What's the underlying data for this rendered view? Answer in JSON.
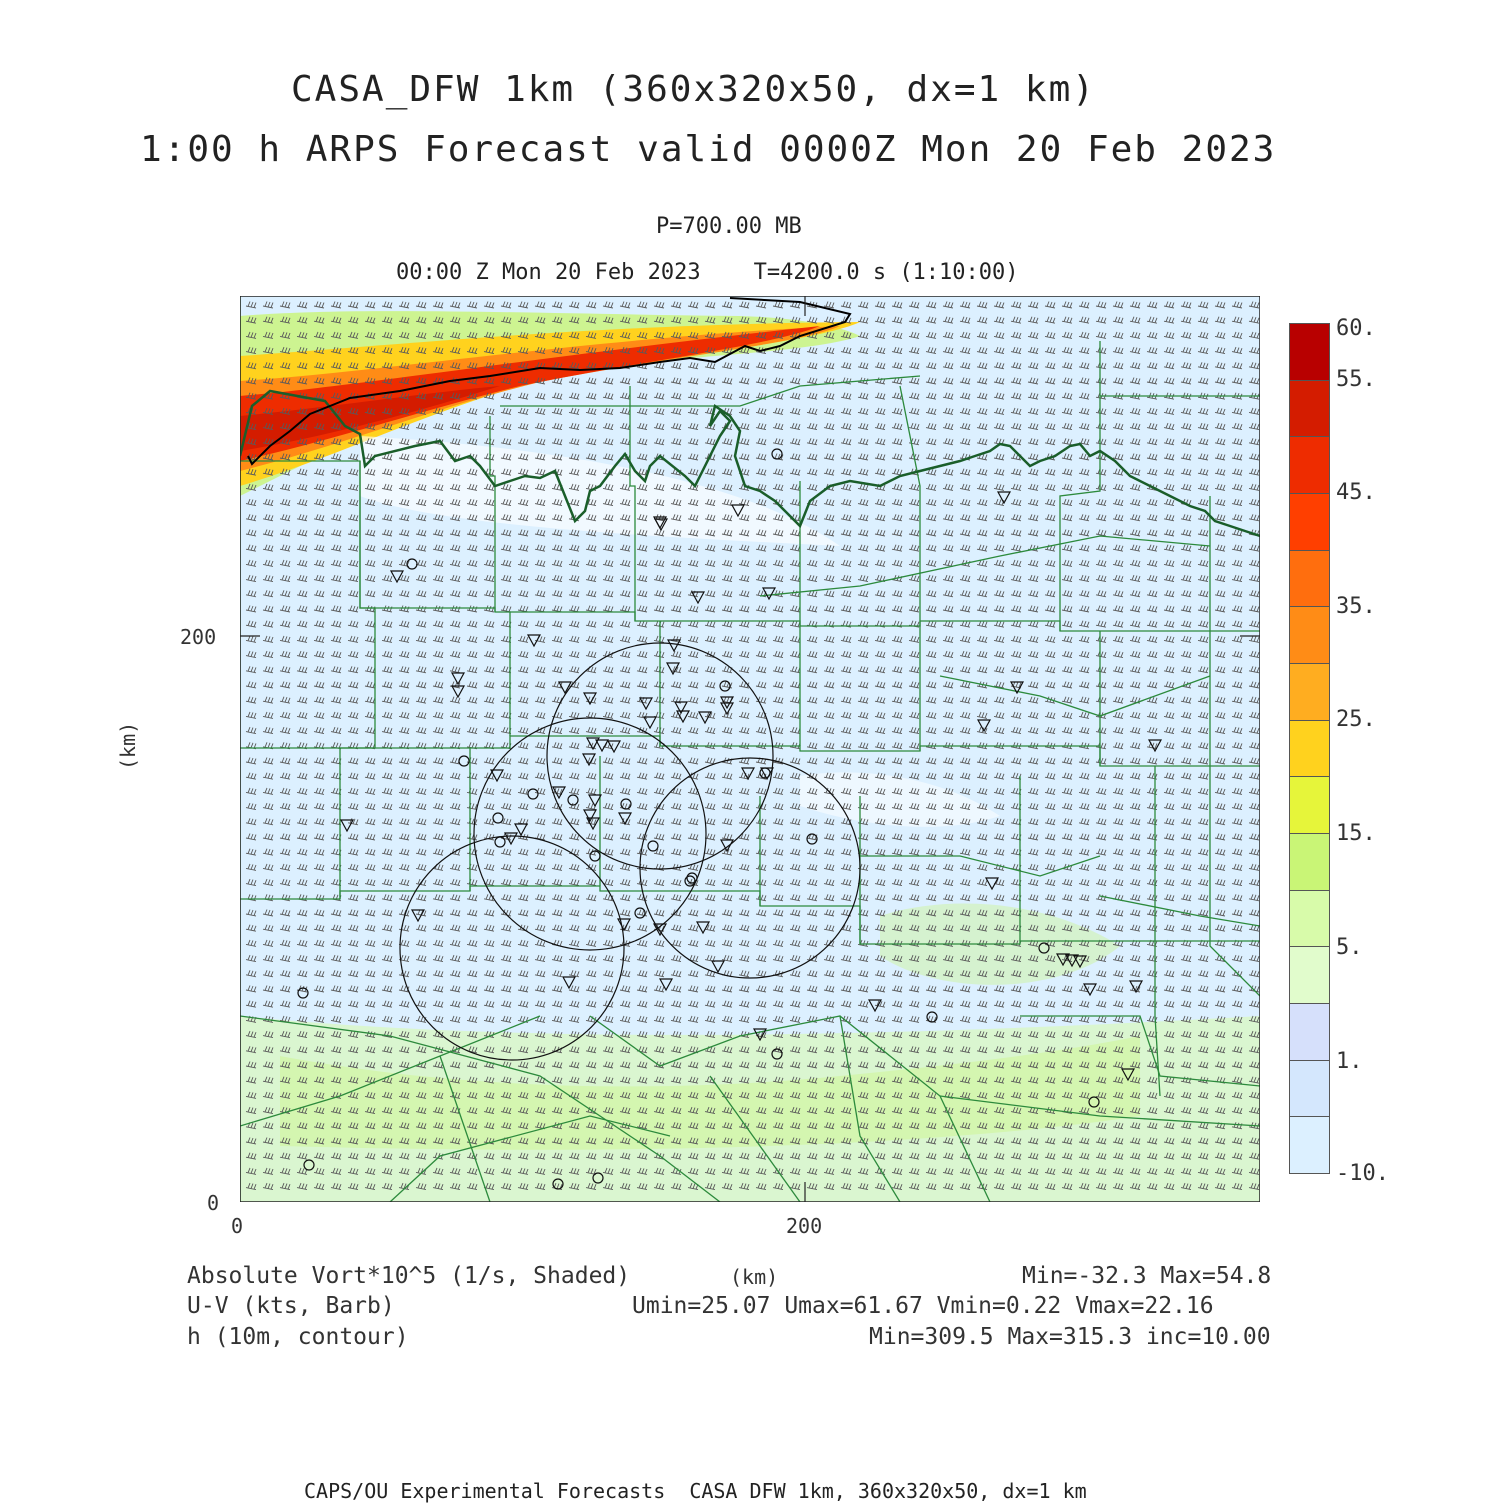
{
  "title": {
    "line1": "CASA_DFW 1km (360x320x50, dx=1 km)",
    "line2": "1:00 h ARPS Forecast valid 0000Z Mon 20 Feb 2023"
  },
  "subtitle": {
    "level": "P=700.00 MB",
    "time": "00:00 Z Mon 20 Feb 2023    T=4200.0 s (1:10:00)"
  },
  "axes": {
    "y_unit": "(km)",
    "x_unit": "(km)",
    "y_ticks": [
      "200",
      "0"
    ],
    "x_ticks": [
      "0",
      "200"
    ],
    "range_km": {
      "x": [
        0,
        360
      ],
      "y": [
        0,
        320
      ]
    }
  },
  "legend": {
    "field1": {
      "name": "Absolute Vort*10^5 (1/s, Shaded)",
      "stats": "Min=-32.3 Max=54.8"
    },
    "field2": {
      "name": "U-V (kts, Barb)",
      "stats": "Umin=25.07 Umax=61.67 Vmin=0.22 Vmax=22.16"
    },
    "field3": {
      "name": "h (10m, contour)",
      "stats": "Min=309.5 Max=315.3 inc=10.00"
    }
  },
  "colorbar": {
    "labels": [
      "60.",
      "55.",
      "45.",
      "35.",
      "25.",
      "15.",
      "5.",
      "1.",
      "-10."
    ],
    "colors": [
      "#b80000",
      "#d41c00",
      "#ee2c00",
      "#ff3f00",
      "#ff6e0e",
      "#ff8c16",
      "#ffad20",
      "#ffd21e",
      "#e6f53a",
      "#c9f576",
      "#d8fbaa",
      "#e1fccc",
      "#d6e0fb",
      "#d4e7fd",
      "#dcf0ff"
    ]
  },
  "map_colors": {
    "background": "#dcf0ff",
    "county_lines": "#2c8a3c",
    "river": "#1a5e2a",
    "barbs": "#555555"
  },
  "footer": "CAPS/OU Experimental Forecasts  CASA DFW 1km, 360x320x50, dx=1 km"
}
